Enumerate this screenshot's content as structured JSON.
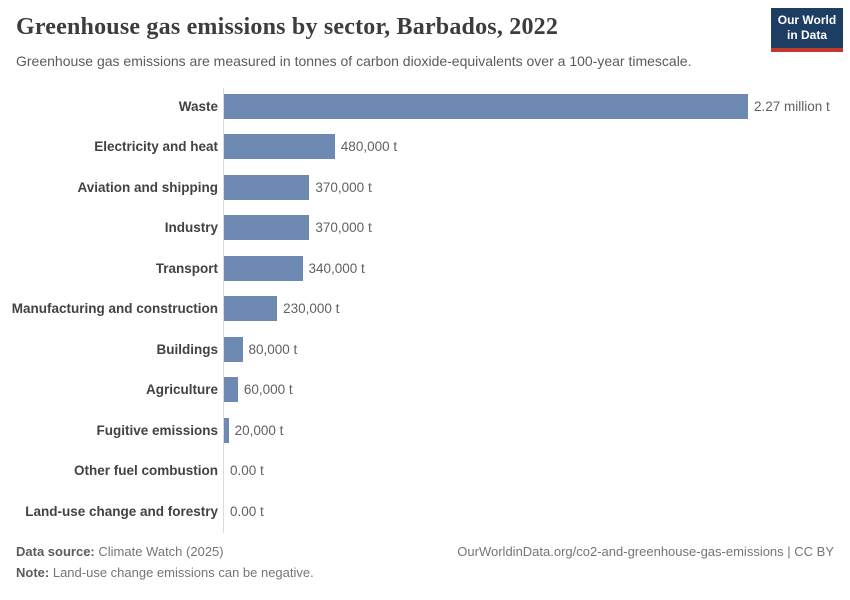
{
  "header": {
    "title": "Greenhouse gas emissions by sector, Barbados, 2022",
    "subtitle": "Greenhouse gas emissions are measured in tonnes of carbon dioxide-equivalents over a 100-year timescale.",
    "logo": {
      "line1": "Our World",
      "line2": "in Data"
    }
  },
  "chart_data": {
    "type": "bar",
    "orientation": "horizontal",
    "title": "Greenhouse gas emissions by sector, Barbados, 2022",
    "xlabel": "",
    "ylabel": "",
    "unit": "t",
    "xlim": [
      0,
      2270000
    ],
    "grid": false,
    "legend": false,
    "categories": [
      "Waste",
      "Electricity and heat",
      "Aviation and shipping",
      "Industry",
      "Transport",
      "Manufacturing and construction",
      "Buildings",
      "Agriculture",
      "Fugitive emissions",
      "Other fuel combustion",
      "Land-use change and forestry"
    ],
    "values": [
      2270000,
      480000,
      370000,
      370000,
      340000,
      230000,
      80000,
      60000,
      20000,
      0,
      0
    ],
    "value_labels": [
      "2.27 million t",
      "480,000 t",
      "370,000 t",
      "370,000 t",
      "340,000 t",
      "230,000 t",
      "80,000 t",
      "60,000 t",
      "20,000 t",
      "0.00 t",
      "0.00 t"
    ]
  },
  "footer": {
    "data_source_label": "Data source:",
    "data_source_value": "Climate Watch (2025)",
    "note_label": "Note:",
    "note_value": "Land-use change emissions can be negative.",
    "link": "OurWorldinData.org/co2-and-greenhouse-gas-emissions | CC BY"
  },
  "colors": {
    "bar": "#6e89b2",
    "axis_line": "#dcdcdc",
    "logo_background": "#1d3d63",
    "logo_red_strip": "#c0392b",
    "title_text": "#3d3d3d",
    "category_text": "#424242",
    "value_text": "#616161",
    "footer_text": "#757575"
  }
}
